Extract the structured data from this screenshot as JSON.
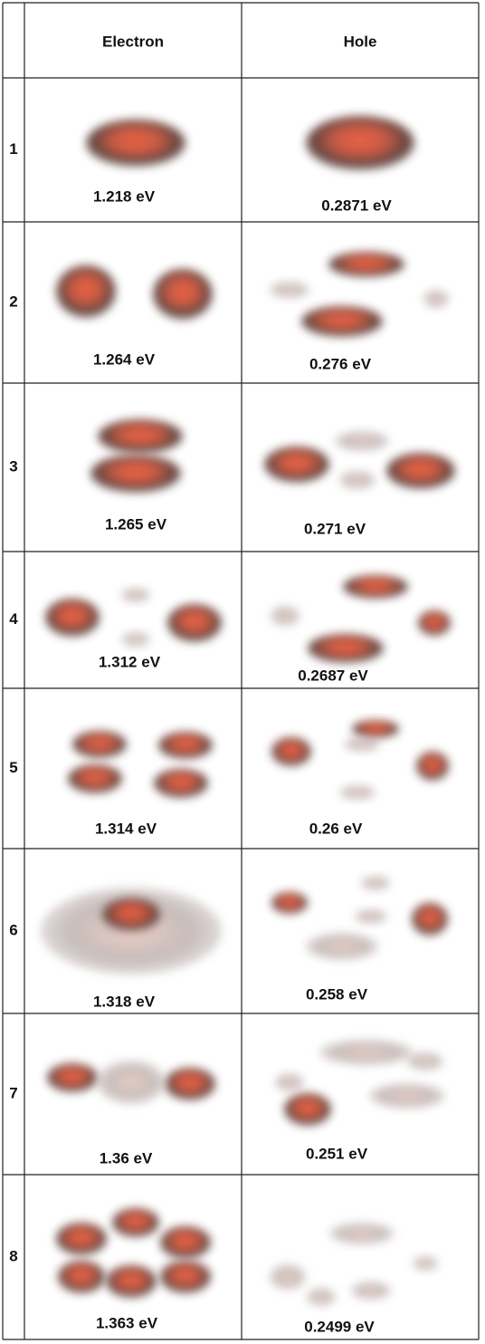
{
  "table": {
    "header": {
      "electron": "Electron",
      "hole": "Hole"
    },
    "rows": [
      {
        "index": "1",
        "electron": "1.218 eV",
        "hole": "0.2871 eV"
      },
      {
        "index": "2",
        "electron": "1.264 eV",
        "hole": "0.276 eV"
      },
      {
        "index": "3",
        "electron": "1.265 eV",
        "hole": "0.271 eV"
      },
      {
        "index": "4",
        "electron": "1.312 eV",
        "hole": "0.2687 eV"
      },
      {
        "index": "5",
        "electron": "1.314 eV",
        "hole": "0.26 eV"
      },
      {
        "index": "6",
        "electron": "1.318 eV",
        "hole": "0.258 eV"
      },
      {
        "index": "7",
        "electron": "1.36 eV",
        "hole": "0.251 eV"
      },
      {
        "index": "8",
        "electron": "1.363 eV",
        "hole": "0.2499 eV"
      }
    ]
  }
}
